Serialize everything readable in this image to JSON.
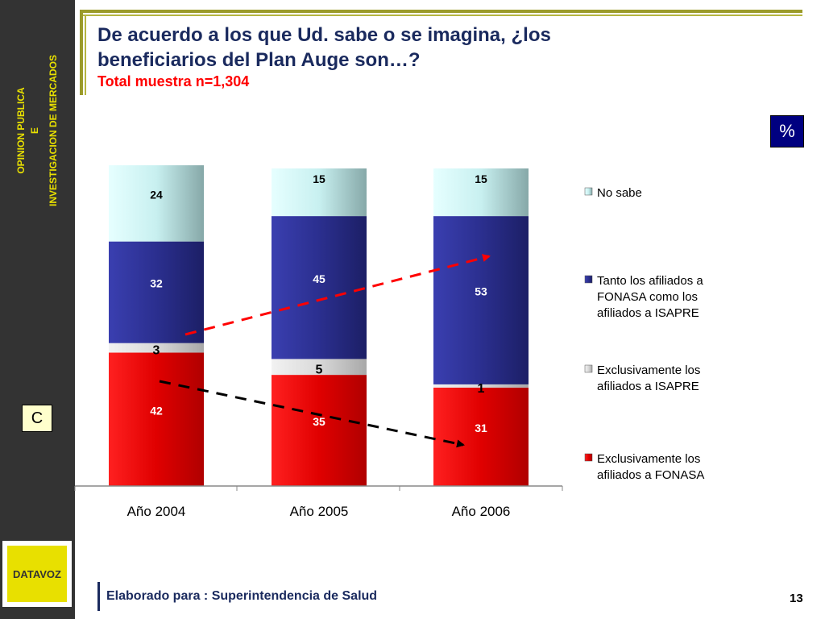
{
  "sidebar": {
    "line1": "OPINION PUBLICA",
    "line2": "E",
    "line3": "INVESTIGACION DE MERCADOS",
    "logo": "DATAVOZ"
  },
  "title_line1": "De acuerdo a los que Ud. sabe o se imagina, ¿los",
  "title_line2": "beneficiarios del Plan Auge son…?",
  "subtitle": "Total muestra n=1,304",
  "unit_badge": "%",
  "section_badge": "C",
  "footer": "Elaborado para : Superintendencia de Salud",
  "page_number": "13",
  "colors": {
    "navy_text": "#1a2a5e",
    "fonasa": "#dd0000",
    "isapre": "#d9d9d9",
    "ambos": "#2b2f8f",
    "no_sabe": "#c8f0f0",
    "olive_frame": "#9b9b2a"
  },
  "chart_data": {
    "type": "bar",
    "stacked": true,
    "categories": [
      "Año 2004",
      "Año 2005",
      "Año 2006"
    ],
    "series": [
      {
        "name": "Exclusivamente los afiliados a FONASA",
        "legend_lines": [
          "Exclusivamente los",
          "afiliados a FONASA"
        ],
        "values": [
          42,
          35,
          31
        ],
        "color": "#dd0000"
      },
      {
        "name": "Exclusivamente los afiliados a ISAPRE",
        "legend_lines": [
          "Exclusivamente los",
          "afiliados a ISAPRE"
        ],
        "values": [
          3,
          5,
          1
        ],
        "color": "#d9d9d9"
      },
      {
        "name": "Tanto los afiliados a FONASA como los afiliados a ISAPRE",
        "legend_lines": [
          "Tanto los afiliados a",
          "FONASA como los",
          "afiliados a ISAPRE"
        ],
        "values": [
          32,
          45,
          53
        ],
        "color": "#2b2f8f"
      },
      {
        "name": "No sabe",
        "legend_lines": [
          "No sabe"
        ],
        "values": [
          24,
          15,
          15
        ],
        "color": "#c8f0f0"
      }
    ],
    "ylim": [
      0,
      101
    ],
    "legend_position": "right",
    "annotations": [
      "red dashed arrow rising across 'ambos' segments",
      "black dashed arrow falling across 'FONASA' segments"
    ]
  }
}
